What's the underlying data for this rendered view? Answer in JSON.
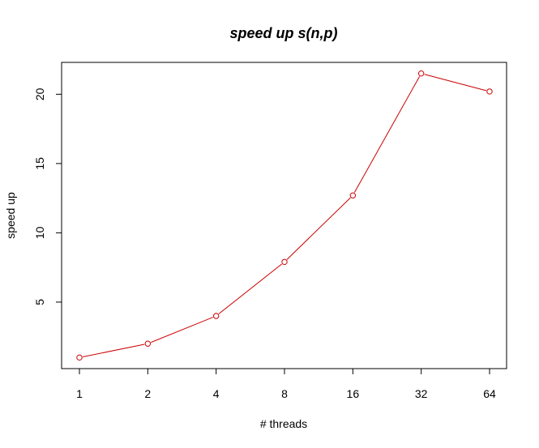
{
  "chart_data": {
    "type": "line",
    "title": "speed up s(n,p)",
    "xlabel": "# threads",
    "ylabel": "speed up",
    "x_categories": [
      "1",
      "2",
      "4",
      "8",
      "16",
      "32",
      "64"
    ],
    "values": [
      1.0,
      2.0,
      4.0,
      7.9,
      12.7,
      21.5,
      20.2
    ],
    "y_ticks": [
      5,
      10,
      15,
      20
    ],
    "ylim": [
      0.2,
      22.3
    ],
    "x_scale": "log2",
    "grid": false,
    "marker": "open-circle",
    "series_color": "#cc0000",
    "axis_color": "#000000"
  }
}
